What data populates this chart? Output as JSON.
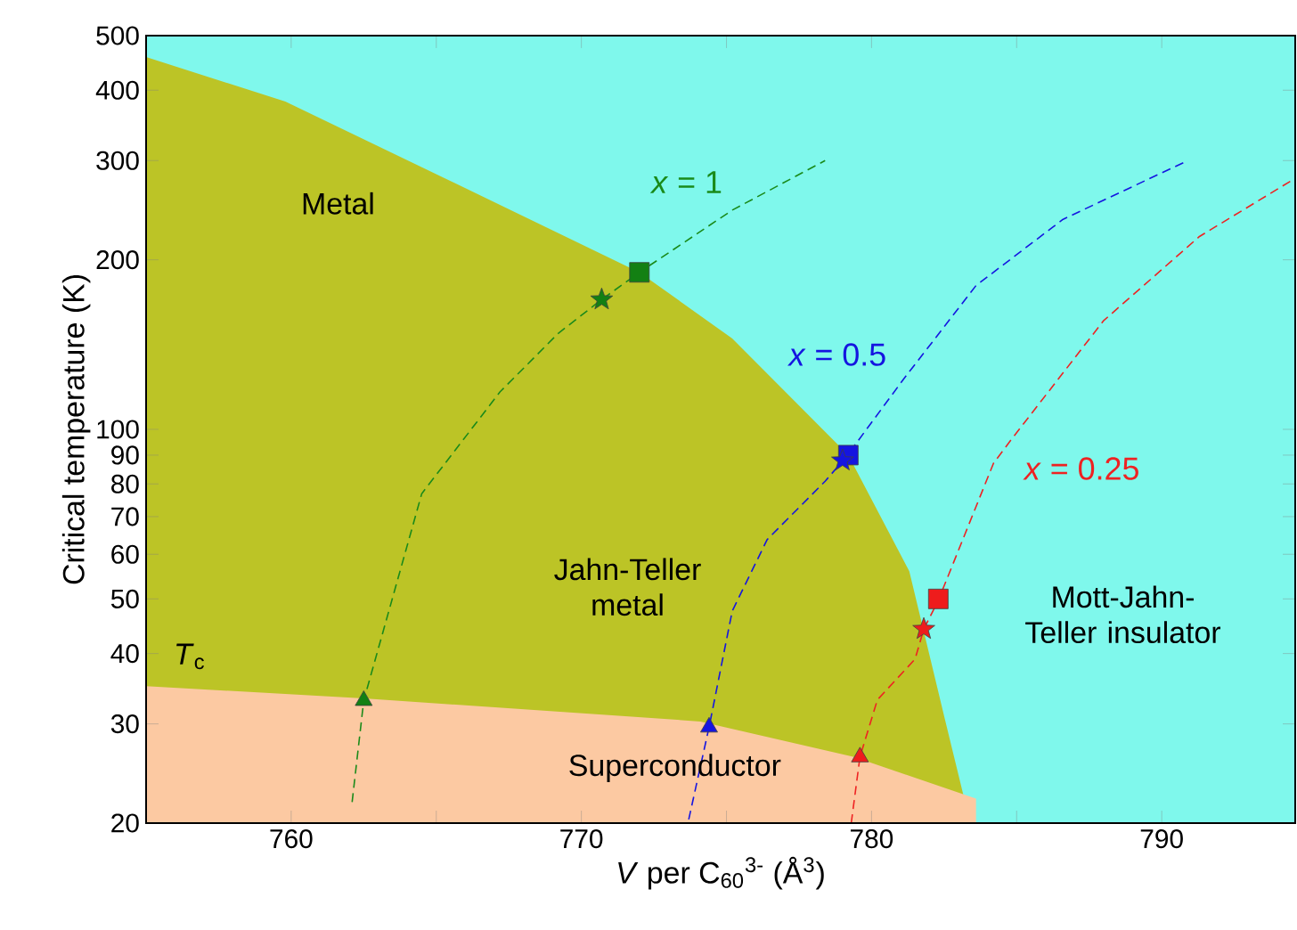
{
  "chart_data": {
    "type": "line",
    "xlabel": "*V* per C$_{60}$$^{3-}$ (Å$^{3}$)",
    "ylabel": "Critical temperature (K)",
    "xlim": [
      755,
      794.6
    ],
    "ylim": [
      20,
      500
    ],
    "log": "y",
    "xticks": [
      760,
      {
        "value": 765,
        "label": null
      },
      770,
      {
        "value": 775,
        "label": null
      },
      780,
      {
        "value": 785,
        "label": null
      },
      790
    ],
    "yticks": [
      20,
      30,
      40,
      50,
      60,
      70,
      80,
      90,
      100,
      200,
      300,
      400,
      500
    ],
    "bands": [
      {
        "axis": "x",
        "from": 755,
        "to": 794.6,
        "color": "#7ff8ec"
      }
    ],
    "series": [
      {
        "type": "area",
        "color": "#bcc426",
        "x": [
          755,
          759.8,
          765.3,
          772,
          775.2,
          779.2,
          781.3,
          782.5,
          783.4
        ],
        "values": [
          458,
          382,
          279,
          190,
          145,
          90,
          56,
          31,
          20
        ]
      },
      {
        "type": "area",
        "name": "*T*$_{c}$",
        "color": "#fcc9a2",
        "x": [
          755,
          762.5,
          774.1,
          779.4,
          783.6,
          783.6
        ],
        "values": [
          35,
          33.3,
          30.3,
          26.2,
          22.1,
          20
        ]
      },
      {
        "name": "*x* = 1",
        "color": "#1a8a1a",
        "line_style": "dashed",
        "x": [
          762.1,
          762.5,
          764.5,
          767.2,
          769.2,
          770.7,
          772,
          775.2,
          778.4
        ],
        "values": [
          21.8,
          33,
          76.9,
          116.6,
          148,
          170,
          190,
          245,
          300
        ]
      },
      {
        "name": "*x* = 0.5",
        "color": "#1515e0",
        "line_style": "dashed",
        "x": [
          773.7,
          774.4,
          775.2,
          776.4,
          778.4,
          779.1,
          781.1,
          783.6,
          786.6,
          790.9
        ],
        "values": [
          20.3,
          29.6,
          47.6,
          63.7,
          80.9,
          89,
          122.7,
          180,
          236,
          300
        ]
      },
      {
        "name": "*x* = 0.25",
        "color": "#ee2222",
        "line_style": "dashed",
        "x": [
          779.3,
          779.6,
          780.2,
          781.5,
          781.8,
          782.3,
          784.2,
          784.8,
          788,
          791.3,
          794.6
        ],
        "values": [
          20,
          26.2,
          33.1,
          39.1,
          44.2,
          49.7,
          87,
          95.7,
          156,
          220,
          279
        ]
      },
      {
        "type": "scatter",
        "marker": "square",
        "colors": [
          "#138013",
          "#1515e0",
          "#ee1c1c"
        ],
        "x": [
          772,
          779.2,
          782.3
        ],
        "values": [
          190,
          90,
          50
        ]
      },
      {
        "type": "scatter",
        "marker": "star",
        "colors": [
          "#138013",
          "#1515e0",
          "#ee1c1c"
        ],
        "x": [
          770.7,
          779,
          781.8
        ],
        "values": [
          170,
          88,
          44.2
        ]
      },
      {
        "type": "scatter",
        "marker": "triangle",
        "colors": [
          "#138013",
          "#1515e0",
          "#ee1c1c"
        ],
        "x": [
          762.5,
          774.4,
          779.6
        ],
        "values": [
          33,
          29.6,
          26.2
        ]
      }
    ],
    "annotations": [
      "Metal",
      "Jahn-Teller metal",
      "Mott-Jahn-Teller insulator",
      "Superconductor"
    ]
  }
}
